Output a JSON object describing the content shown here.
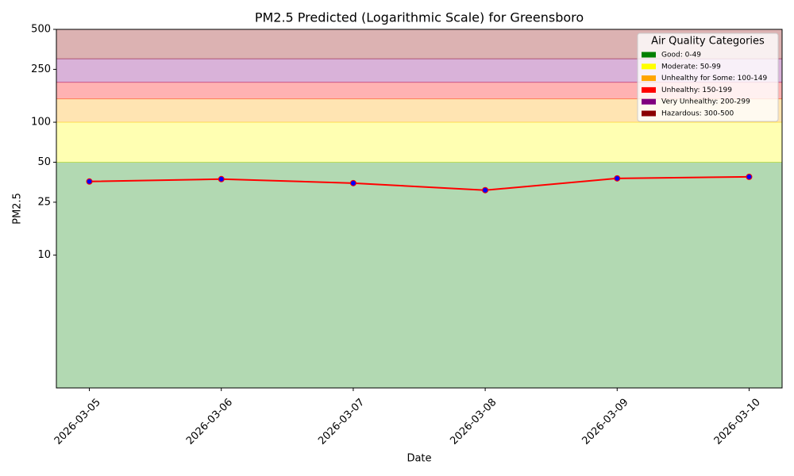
{
  "chart_data": {
    "type": "line",
    "title": "PM2.5 Predicted (Logarithmic Scale) for Greensboro",
    "x_label": "Date",
    "y_label": "PM2.5",
    "categories": [
      "2026-03-05",
      "2026-03-06",
      "2026-03-07",
      "2026-03-08",
      "2026-03-09",
      "2026-03-10"
    ],
    "values": [
      35.8,
      37.3,
      34.8,
      30.8,
      37.8,
      38.8
    ],
    "color": "red",
    "marker_color": "blue",
    "log_scale": true,
    "ylim": [
      1,
      500
    ],
    "yticks": [
      10,
      25,
      50,
      100,
      250,
      500
    ],
    "legend_title": "Air Quality Categories",
    "legend_position": "upper right",
    "bands": [
      {
        "label": "Good: 0-49",
        "range": [
          0,
          50
        ],
        "color": "green"
      },
      {
        "label": "Moderate: 50-99",
        "range": [
          50,
          100
        ],
        "color": "yellow"
      },
      {
        "label": "Unhealthy for Some: 100-149",
        "range": [
          100,
          150
        ],
        "color": "orange"
      },
      {
        "label": "Unhealthy: 150-199",
        "range": [
          150,
          200
        ],
        "color": "red"
      },
      {
        "label": "Very Unhealthy: 200-299",
        "range": [
          200,
          300
        ],
        "color": "purple"
      },
      {
        "label": "Hazardous: 300-500",
        "range": [
          300,
          500
        ],
        "color": "darkred"
      }
    ]
  }
}
